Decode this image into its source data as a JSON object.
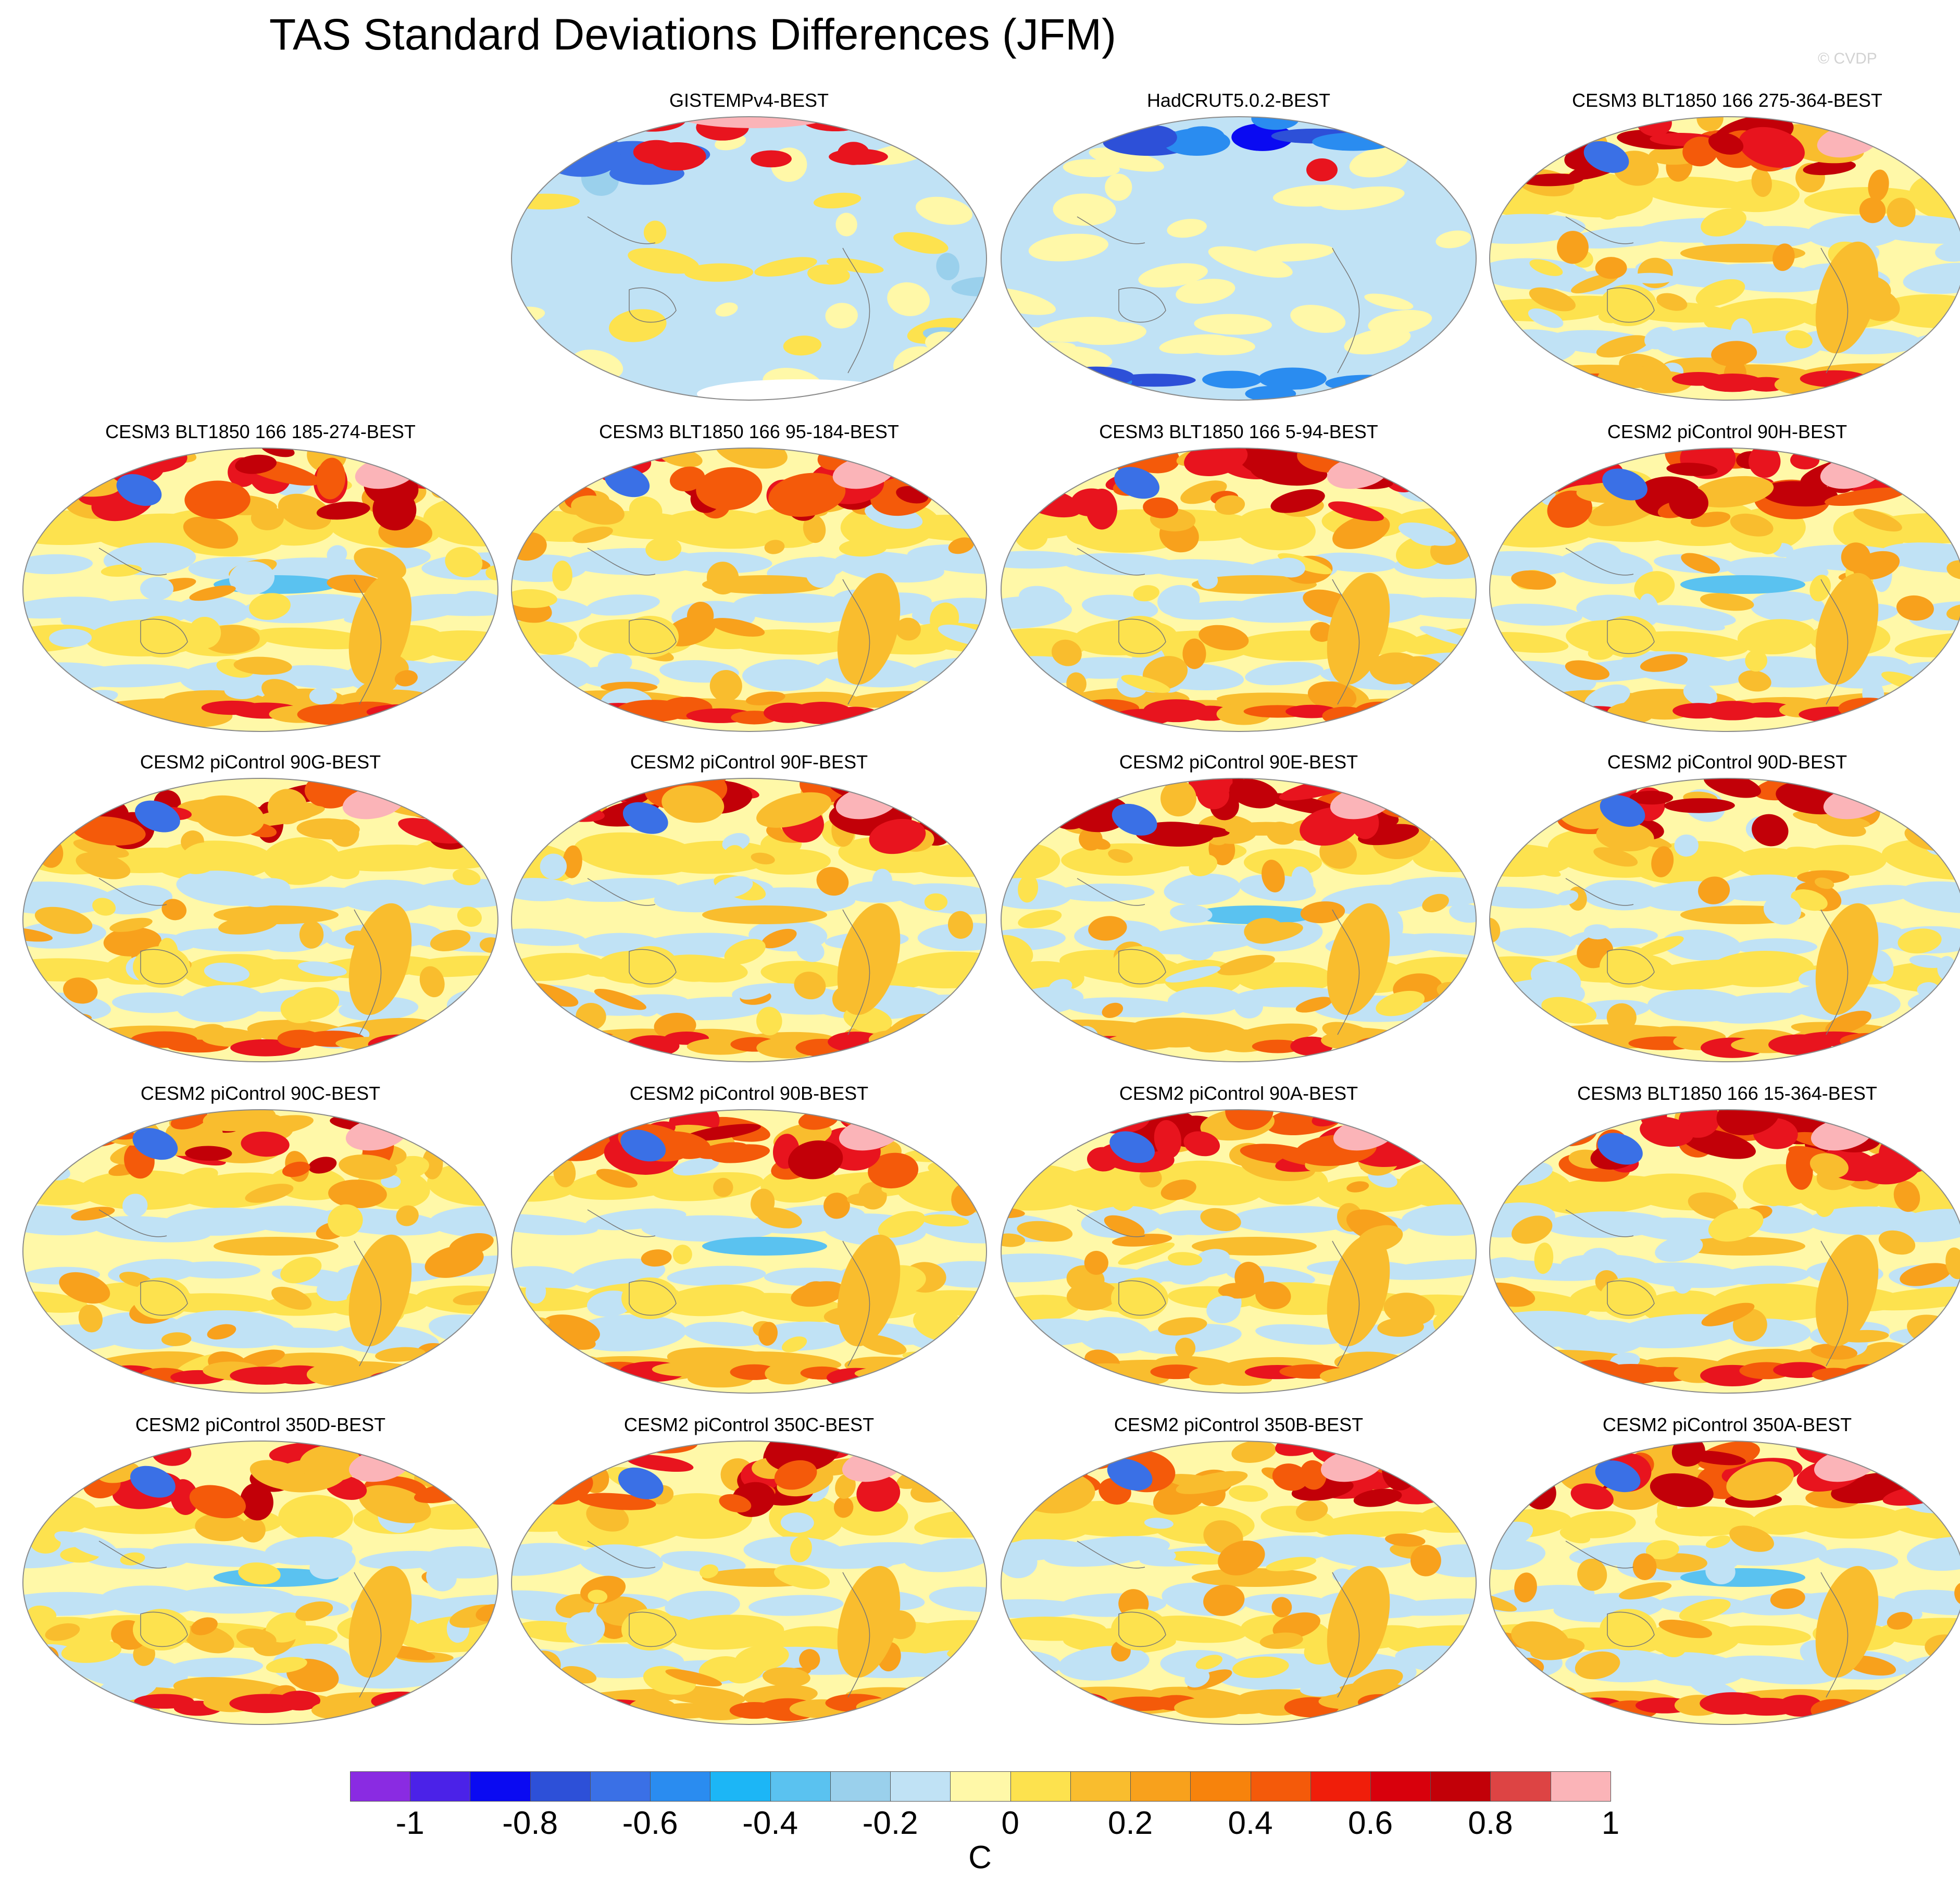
{
  "title": "TAS Standard Deviations Differences (JFM)",
  "watermark": "© CVDP",
  "panels": [
    {
      "title": "GISTEMPv4-BEST",
      "style": "obs_gis"
    },
    {
      "title": "HadCRUT5.0.2-BEST",
      "style": "obs_had"
    },
    {
      "title": "CESM3 BLT1850 166 275-364-BEST",
      "style": "model"
    },
    {
      "title": "CESM3 BLT1850 166 185-274-BEST",
      "style": "model"
    },
    {
      "title": "CESM3 BLT1850 166 95-184-BEST",
      "style": "model"
    },
    {
      "title": "CESM3 BLT1850 166 5-94-BEST",
      "style": "model"
    },
    {
      "title": "CESM2 piControl 90H-BEST",
      "style": "model"
    },
    {
      "title": "CESM2 piControl 90G-BEST",
      "style": "model"
    },
    {
      "title": "CESM2 piControl 90F-BEST",
      "style": "model"
    },
    {
      "title": "CESM2 piControl 90E-BEST",
      "style": "model"
    },
    {
      "title": "CESM2 piControl 90D-BEST",
      "style": "model"
    },
    {
      "title": "CESM2 piControl 90C-BEST",
      "style": "model"
    },
    {
      "title": "CESM2 piControl 90B-BEST",
      "style": "model"
    },
    {
      "title": "CESM2 piControl 90A-BEST",
      "style": "model"
    },
    {
      "title": "CESM3 BLT1850 166 15-364-BEST",
      "style": "model"
    },
    {
      "title": "CESM2 piControl 350D-BEST",
      "style": "model"
    },
    {
      "title": "CESM2 piControl 350C-BEST",
      "style": "model"
    },
    {
      "title": "CESM2 piControl 350B-BEST",
      "style": "model"
    },
    {
      "title": "CESM2 piControl 350A-BEST",
      "style": "model"
    }
  ],
  "colorbar": {
    "colors": [
      "#8a2be2",
      "#4b22e8",
      "#0a0af2",
      "#2d50d8",
      "#3a70e6",
      "#2a8cf0",
      "#1cb6f6",
      "#5ac2f0",
      "#9ad0ec",
      "#c0e2f5",
      "#fff8a8",
      "#fde24e",
      "#f9bd2e",
      "#f8a11c",
      "#f7830c",
      "#f45a0a",
      "#f01e0a",
      "#d8000c",
      "#c20008",
      "#dd4444",
      "#fbb4b8"
    ],
    "tick_labels": [
      "-1",
      "-0.8",
      "-0.6",
      "-0.4",
      "-0.2",
      "0",
      "0.2",
      "0.4",
      "0.6",
      "0.8",
      "1"
    ],
    "unit": "C"
  },
  "colors": {
    "ocean_light_blue": "#c0e2f5",
    "pale_yellow": "#fff8a8",
    "yellow": "#fde24e",
    "orange": "#f9bd2e",
    "red": "#e8141e",
    "pink": "#fbb4b8",
    "blue": "#3a70e6",
    "coastline": "#777777"
  }
}
